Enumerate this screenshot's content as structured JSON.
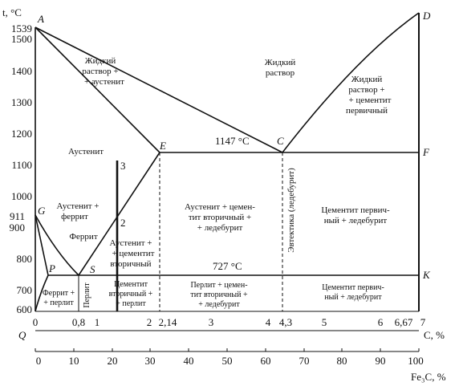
{
  "y_axis": {
    "label": "t, °C",
    "ticks": [
      "1539",
      "1500",
      "1400",
      "1300",
      "1200",
      "1100",
      "1000",
      "911",
      "900",
      "800",
      "700",
      "600"
    ]
  },
  "x_axis_c": {
    "ticks": [
      "0",
      "0,8",
      "1",
      "2",
      "2,14",
      "3",
      "4",
      "4,3",
      "5",
      "6",
      "6,67",
      "7"
    ],
    "unit": "C, %"
  },
  "x_axis_fe3c": {
    "ticks": [
      "0",
      "10",
      "20",
      "30",
      "40",
      "50",
      "60",
      "70",
      "80",
      "90",
      "100"
    ],
    "unit": "Fe₃C, %"
  },
  "points": {
    "A": "A",
    "D": "D",
    "E": "E",
    "C": "C",
    "F": "F",
    "G": "G",
    "P": "P",
    "S": "S",
    "K": "K",
    "Q": "Q",
    "line3": "3",
    "line2": "2",
    "line1": "1"
  },
  "temps": {
    "t1147": "1147 °C",
    "t727": "727 °C"
  },
  "regions": {
    "liquid_austenite_1": "Жидкий",
    "liquid_austenite_2": "раствор +",
    "liquid_austenite_3": "+ аустенит",
    "liquid_1": "Жидкий",
    "liquid_2": "раствор",
    "liquid_cementite_1": "Жидкий",
    "liquid_cementite_2": "раствор +",
    "liquid_cementite_3": "+ цементит",
    "liquid_cementite_4": "первичный",
    "austenite": "Аустенит",
    "aust_ferrite_1": "Аустенит +",
    "aust_ferrite_2": "феррит",
    "ferrite": "Феррит",
    "aust_cem2_1": "Аустенит +",
    "aust_cem2_2": "+ цементит",
    "aust_cem2_3": "вторичный",
    "aust_cem_led_1": "Аустенит + цемен-",
    "aust_cem_led_2": "тит вторичный +",
    "aust_cem_led_3": "+ ледебурит",
    "eutectic": "Эвтектика (ледебурит)",
    "cem1_led_1": "Цементит первич-",
    "cem1_led_2": "ный + ледебурит",
    "ferr_perl_1": "Феррит +",
    "ferr_perl_2": "+ перлит",
    "perlite": "Перлит",
    "cem_perl_1": "Цементит",
    "cem_perl_2": "вторичный +",
    "cem_perl_3": "+ перлит",
    "perl_cem_led_1": "Перлит + цемен-",
    "perl_cem_led_2": "тит вторичный +",
    "perl_cem_led_3": "+ ледебурит",
    "cem1_led_low_1": "Цементит первич-",
    "cem1_led_low_2": "ный + ледебурит"
  }
}
